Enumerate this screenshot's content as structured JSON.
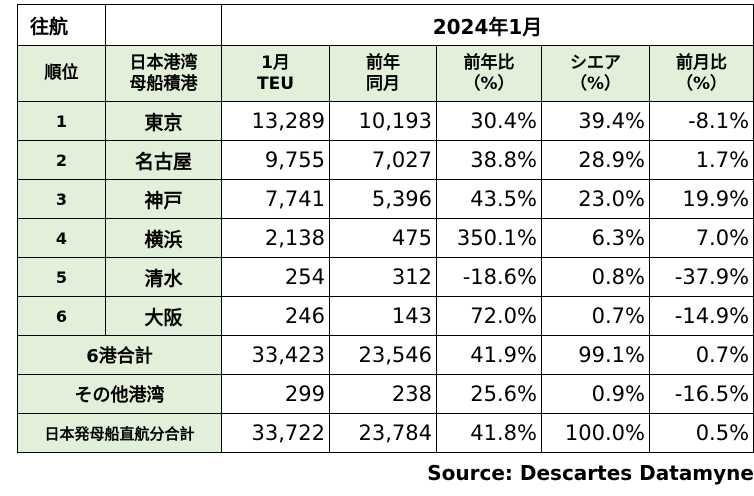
{
  "table": {
    "title": "往航",
    "period": "2024年1月",
    "headers": {
      "rank": "順位",
      "port_line1": "日本港湾",
      "port_line2": "母船積港",
      "teu_line1": "1月",
      "teu_line2": "TEU",
      "prev_line1": "前年",
      "prev_line2": "同月",
      "yoy_line1": "前年比",
      "yoy_line2": "（%）",
      "share_line1": "シエア",
      "share_line2": "（%）",
      "mom_line1": "前月比",
      "mom_line2": "（%）"
    },
    "rows": [
      {
        "rank": "1",
        "port": "東京",
        "teu": "13,289",
        "prev": "10,193",
        "yoy": "30.4%",
        "share": "39.4%",
        "mom": "-8.1%"
      },
      {
        "rank": "2",
        "port": "名古屋",
        "teu": "9,755",
        "prev": "7,027",
        "yoy": "38.8%",
        "share": "28.9%",
        "mom": "1.7%"
      },
      {
        "rank": "3",
        "port": "神戸",
        "teu": "7,741",
        "prev": "5,396",
        "yoy": "43.5%",
        "share": "23.0%",
        "mom": "19.9%"
      },
      {
        "rank": "4",
        "port": "横浜",
        "teu": "2,138",
        "prev": "475",
        "yoy": "350.1%",
        "share": "6.3%",
        "mom": "7.0%"
      },
      {
        "rank": "5",
        "port": "清水",
        "teu": "254",
        "prev": "312",
        "yoy": "-18.6%",
        "share": "0.8%",
        "mom": "-37.9%"
      },
      {
        "rank": "6",
        "port": "大阪",
        "teu": "246",
        "prev": "143",
        "yoy": "72.0%",
        "share": "0.7%",
        "mom": "-14.9%"
      }
    ],
    "totals": [
      {
        "label": "6港合計",
        "teu": "33,423",
        "prev": "23,546",
        "yoy": "41.9%",
        "share": "99.1%",
        "mom": "0.7%"
      },
      {
        "label": "その他港湾",
        "teu": "299",
        "prev": "238",
        "yoy": "25.6%",
        "share": "0.9%",
        "mom": "-16.5%"
      },
      {
        "label": "日本発母船直航分合計",
        "teu": "33,722",
        "prev": "23,784",
        "yoy": "41.8%",
        "share": "100.0%",
        "mom": "0.5%"
      }
    ]
  },
  "source": "Source:  Descartes Datamyne",
  "colors": {
    "header_fill": "#e2efd9"
  }
}
